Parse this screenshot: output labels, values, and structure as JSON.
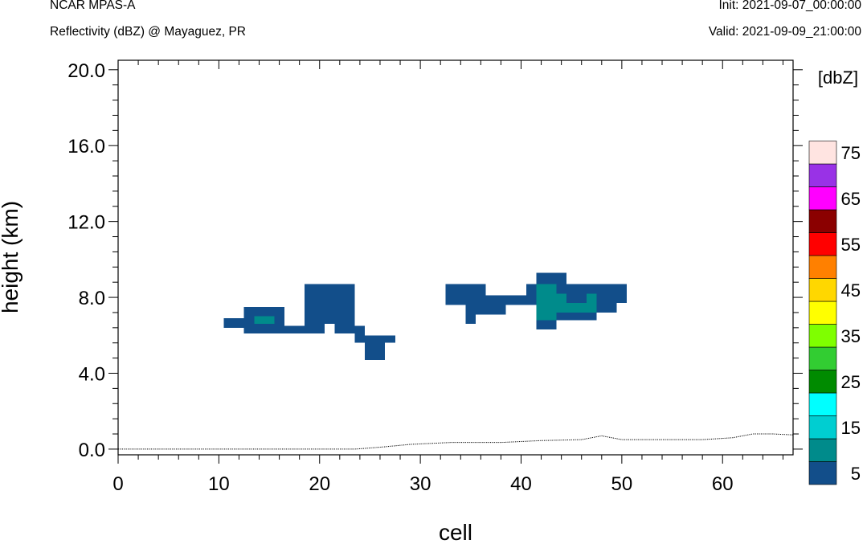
{
  "header": {
    "title": "NCAR MPAS-A",
    "subtitle": "Reflectivity (dBZ) @ Mayaguez, PR",
    "init": "Init: 2021-09-07_00:00:00",
    "valid": "Valid: 2021-09-09_21:00:00"
  },
  "chart_data": {
    "type": "heatmap",
    "title": "Reflectivity (dBZ) @ Mayaguez, PR",
    "xlabel": "cell",
    "ylabel": "height (km)",
    "xlim": [
      0,
      67
    ],
    "ylim": [
      -0.3,
      20.5
    ],
    "x_ticks": [
      0,
      10,
      20,
      30,
      40,
      50,
      60
    ],
    "x_tick_labels": [
      "0",
      "10",
      "20",
      "30",
      "40",
      "50",
      "60"
    ],
    "y_ticks": [
      0,
      4,
      8,
      12,
      16,
      20
    ],
    "y_tick_labels": [
      "0.0",
      "4.0",
      "8.0",
      "12.0",
      "16.0",
      "20.0"
    ],
    "colorbar": {
      "unit_label": "[dbZ]",
      "levels": [
        5,
        10,
        15,
        20,
        25,
        30,
        35,
        40,
        45,
        50,
        55,
        60,
        65,
        70,
        75
      ],
      "tick_labels": [
        "5",
        "15",
        "25",
        "35",
        "45",
        "55",
        "65",
        "75"
      ],
      "colors": [
        "#124E8A",
        "#008B8B",
        "#00CED1",
        "#00FFFF",
        "#008B00",
        "#32CD32",
        "#7FFF00",
        "#FFFF00",
        "#FFD700",
        "#FF8000",
        "#FF0000",
        "#8B0000",
        "#FF00FF",
        "#9932E6",
        "#FFE4E1"
      ]
    },
    "cells": [
      {
        "x0": 10.5,
        "x1": 12.5,
        "y0": 6.4,
        "y1": 6.9,
        "dbz": 5
      },
      {
        "x0": 12.5,
        "x1": 16.5,
        "y0": 6.1,
        "y1": 7.5,
        "dbz": 5
      },
      {
        "x0": 16.5,
        "x1": 18.5,
        "y0": 6.1,
        "y1": 6.5,
        "dbz": 5
      },
      {
        "x0": 18.5,
        "x1": 20.5,
        "y0": 6.1,
        "y1": 8.7,
        "dbz": 5
      },
      {
        "x0": 20.5,
        "x1": 21.5,
        "y0": 6.6,
        "y1": 8.7,
        "dbz": 5
      },
      {
        "x0": 21.5,
        "x1": 23.5,
        "y0": 6.1,
        "y1": 8.7,
        "dbz": 5
      },
      {
        "x0": 23.5,
        "x1": 24.5,
        "y0": 5.6,
        "y1": 6.5,
        "dbz": 5
      },
      {
        "x0": 24.5,
        "x1": 26.5,
        "y0": 4.7,
        "y1": 6.0,
        "dbz": 5
      },
      {
        "x0": 26.5,
        "x1": 27.5,
        "y0": 5.6,
        "y1": 6.0,
        "dbz": 5
      },
      {
        "x0": 32.5,
        "x1": 34.5,
        "y0": 7.6,
        "y1": 8.7,
        "dbz": 5
      },
      {
        "x0": 34.5,
        "x1": 35.5,
        "y0": 6.6,
        "y1": 8.7,
        "dbz": 5
      },
      {
        "x0": 35.5,
        "x1": 36.5,
        "y0": 7.1,
        "y1": 8.7,
        "dbz": 5
      },
      {
        "x0": 36.5,
        "x1": 38.5,
        "y0": 7.1,
        "y1": 8.1,
        "dbz": 5
      },
      {
        "x0": 38.5,
        "x1": 40.5,
        "y0": 7.6,
        "y1": 8.1,
        "dbz": 5
      },
      {
        "x0": 40.5,
        "x1": 41.5,
        "y0": 7.6,
        "y1": 8.7,
        "dbz": 5
      },
      {
        "x0": 41.5,
        "x1": 43.5,
        "y0": 6.3,
        "y1": 9.3,
        "dbz": 5
      },
      {
        "x0": 43.5,
        "x1": 44.5,
        "y0": 6.8,
        "y1": 9.3,
        "dbz": 5
      },
      {
        "x0": 44.5,
        "x1": 47.5,
        "y0": 6.8,
        "y1": 8.7,
        "dbz": 5
      },
      {
        "x0": 47.5,
        "x1": 49.5,
        "y0": 7.2,
        "y1": 8.7,
        "dbz": 5
      },
      {
        "x0": 49.5,
        "x1": 50.5,
        "y0": 7.7,
        "y1": 8.7,
        "dbz": 5
      },
      {
        "x0": 13.5,
        "x1": 15.5,
        "y0": 6.6,
        "y1": 7.0,
        "dbz": 10
      },
      {
        "x0": 41.5,
        "x1": 43.5,
        "y0": 6.8,
        "y1": 8.7,
        "dbz": 10
      },
      {
        "x0": 43.5,
        "x1": 44.5,
        "y0": 7.2,
        "y1": 8.2,
        "dbz": 10
      },
      {
        "x0": 44.5,
        "x1": 47.5,
        "y0": 7.2,
        "y1": 7.7,
        "dbz": 10
      },
      {
        "x0": 46.5,
        "x1": 47.5,
        "y0": 7.2,
        "y1": 8.2,
        "dbz": 10
      }
    ],
    "terrain": {
      "x": [
        0,
        23.5,
        26,
        29,
        33,
        38,
        42,
        46,
        48,
        50,
        54,
        58,
        61,
        63,
        65,
        67
      ],
      "y": [
        0.0,
        0.0,
        0.1,
        0.25,
        0.35,
        0.35,
        0.45,
        0.5,
        0.7,
        0.5,
        0.5,
        0.5,
        0.6,
        0.8,
        0.8,
        0.75
      ]
    }
  }
}
